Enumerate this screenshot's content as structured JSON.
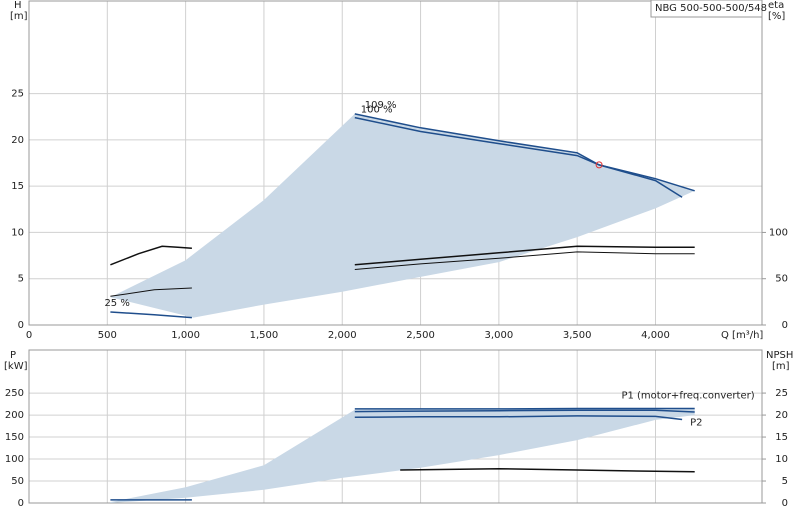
{
  "chart_data": [
    {
      "type": "line",
      "title": "NBG 500-500-500/548",
      "x_label": "Q [m³/h]",
      "y_label": "H",
      "y_unit": "[m]",
      "y2_label": "eta",
      "y2_unit": "[%]",
      "xlim": [
        0,
        4680
      ],
      "ylim": [
        0,
        35
      ],
      "y2lim": [
        0,
        350
      ],
      "grid": true,
      "xticks": [
        0,
        500,
        {
          "value": 1000,
          "label": "1,000"
        },
        {
          "value": 1500,
          "label": "1,500"
        },
        {
          "value": 2000,
          "label": "2,000"
        },
        {
          "value": 2500,
          "label": "2,500"
        },
        {
          "value": 3000,
          "label": "3,000"
        },
        {
          "value": 3500,
          "label": "3,500"
        },
        {
          "value": 4000,
          "label": "4,000"
        }
      ],
      "yticks": [
        0,
        5,
        10,
        15,
        20,
        25
      ],
      "y2ticks": [
        0,
        50,
        100
      ],
      "area": {
        "color": "#c9d8e6",
        "x": [
          520,
          1000,
          1500,
          2080,
          2500,
          3000,
          3500,
          3640,
          4000,
          4250,
          4000,
          3500,
          3000,
          2500,
          2000,
          1500,
          1050
        ],
        "y": [
          3.0,
          7.0,
          13.5,
          22.8,
          21.3,
          19.9,
          18.6,
          17.3,
          15.8,
          14.5,
          12.6,
          9.5,
          6.8,
          5.2,
          3.6,
          2.2,
          0.8
        ]
      },
      "series": [
        {
          "name": "109 %",
          "color": "#1f4e8c",
          "x": [
            2080,
            2500,
            3000,
            3500,
            3640,
            4000,
            4250
          ],
          "values": [
            22.8,
            21.3,
            19.9,
            18.6,
            17.3,
            15.8,
            14.5
          ]
        },
        {
          "name": "100 %",
          "color": "#1f4e8c",
          "x": [
            2080,
            2500,
            3000,
            3500,
            3640,
            4000,
            4170
          ],
          "values": [
            22.4,
            20.9,
            19.6,
            18.3,
            17.3,
            15.6,
            13.8
          ]
        },
        {
          "name": "25 %",
          "color": "#1f4e8c",
          "x": [
            520,
            800,
            1040
          ],
          "values": [
            1.4,
            1.1,
            0.8
          ]
        },
        {
          "color": "#111111",
          "axis": "y2",
          "x": [
            520,
            700,
            850,
            950,
            1040
          ],
          "values": [
            65,
            77,
            85,
            84,
            83
          ]
        },
        {
          "color": "#111111",
          "axis": "y2",
          "x": [
            520,
            800,
            1040
          ],
          "values": [
            31,
            38,
            40
          ]
        },
        {
          "color": "#111111",
          "axis": "y2",
          "x": [
            2080,
            2500,
            3000,
            3500,
            4000,
            4250
          ],
          "values": [
            65,
            71,
            78,
            85,
            84,
            84
          ]
        },
        {
          "color": "#111111",
          "axis": "y2",
          "x": [
            2080,
            2500,
            3000,
            3500,
            4000,
            4250
          ],
          "values": [
            60,
            66,
            72,
            79,
            77,
            77
          ]
        }
      ],
      "duty_point": {
        "x": 3640,
        "y": 17.3,
        "color": "#e03030"
      }
    },
    {
      "type": "line",
      "y_label": "P",
      "y_unit": "[kW]",
      "y2_label": "NPSH",
      "y2_unit": "[m]",
      "xlim": [
        0,
        4680
      ],
      "ylim": [
        0,
        348
      ],
      "y2lim": [
        0,
        34.8
      ],
      "grid": true,
      "yticks": [
        0,
        50,
        100,
        150,
        200,
        250
      ],
      "y2ticks": [
        0,
        5,
        10,
        15,
        20,
        25
      ],
      "area": {
        "color": "#c9d8e6",
        "x": [
          520,
          1000,
          1500,
          2080,
          2500,
          3000,
          3500,
          4000,
          4250,
          4250,
          4000,
          3500,
          3000,
          2500,
          2000,
          1500,
          1000,
          520
        ],
        "y": [
          2,
          36,
          86,
          212,
          213,
          214,
          215,
          215,
          214,
          200,
          189,
          143,
          109,
          80,
          57,
          30,
          12,
          0
        ]
      },
      "series": [
        {
          "name": "P1 (motor+freq.converter)",
          "color": "#1f4e8c",
          "x": [
            2080,
            2500,
            3000,
            3500,
            4000,
            4250
          ],
          "values": [
            214,
            214,
            214,
            215,
            215,
            215
          ]
        },
        {
          "color": "#1f4e8c",
          "x": [
            2080,
            2500,
            3000,
            3500,
            4000,
            4250
          ],
          "values": [
            208,
            209,
            210,
            211,
            211,
            207
          ]
        },
        {
          "name": "P2",
          "color": "#1f4e8c",
          "x": [
            2080,
            2500,
            3000,
            3500,
            4000,
            4170
          ],
          "values": [
            195,
            196,
            196,
            198,
            197,
            190
          ]
        },
        {
          "color": "#1f4e8c",
          "x": [
            520,
            1040
          ],
          "values": [
            7,
            7
          ]
        },
        {
          "color": "#111111",
          "axis": "y2",
          "x": [
            2370,
            3000,
            3500,
            4000,
            4250
          ],
          "values": [
            7.5,
            7.8,
            7.5,
            7.2,
            7.1
          ]
        }
      ]
    }
  ]
}
